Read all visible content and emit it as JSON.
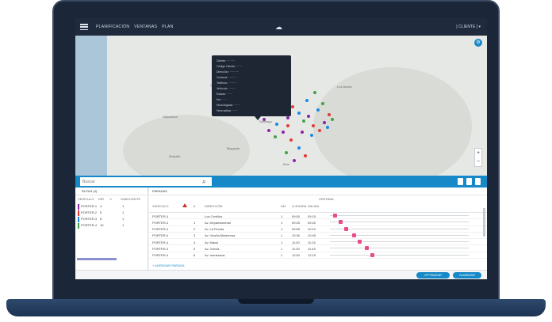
{
  "topbar": {
    "breadcrumbs": [
      "PLANIFICACIÓN",
      "VENTANAS",
      "PLAN"
    ],
    "user": "[ CLIENTE ] ▾"
  },
  "map": {
    "city_labels": [
      "Santiago",
      "Melipilla",
      "San Antonio",
      "Talagante",
      "Buin",
      "Valparaíso",
      "Quillota",
      "Los Andes"
    ],
    "tooltip_lines": [
      "Cliente: ·········",
      "Código Cliente: ······",
      "Dirección: ··········",
      "Comuna: ·········",
      "Teléfono: ·········",
      "Vehículo: ·······",
      "Estado: ······",
      "Km: ····",
      "Hora llegada: ······",
      "Hora salida: ······",
      "Ventana: ········",
      "Observaciones: ·····"
    ]
  },
  "search": {
    "placeholder": "Buscar"
  },
  "left_panel": {
    "title": "RUTAS (4)",
    "columns": [
      "VEHÍCULO",
      "DIR",
      "",
      "SUBCLIENTE"
    ],
    "rows": [
      {
        "vehicle": "PORTER-1",
        "dir": "4",
        "extra": "",
        "sub": "1",
        "color": "#8e24aa"
      },
      {
        "vehicle": "PORTER-2",
        "dir": "5",
        "extra": "",
        "sub": "1",
        "color": "#e53935"
      },
      {
        "vehicle": "PORTER-3",
        "dir": "8",
        "extra": "",
        "sub": "1",
        "color": "#1e88e5"
      },
      {
        "vehicle": "PORTER-4",
        "dir": "10",
        "extra": "",
        "sub": "1",
        "color": "#43a047"
      }
    ]
  },
  "right_panel": {
    "title": "PARADAS",
    "columns": [
      "VEHÍCULO",
      "",
      "#",
      "DIRECCIÓN",
      "KM",
      "LLEGADA",
      "SALIDA",
      "VENTANA"
    ],
    "rows": [
      {
        "vehicle": "PORTER-4",
        "num": "",
        "address": "Los Cerrillos",
        "km": "1",
        "eta": "09:00",
        "etd": "09:15",
        "pin": 0.02
      },
      {
        "vehicle": "PORTER-4",
        "num": "1",
        "address": "Av. Departamental",
        "km": "1",
        "eta": "09:25",
        "etd": "09:40",
        "pin": 0.06
      },
      {
        "vehicle": "PORTER-4",
        "num": "2",
        "address": "Av. La Florida",
        "km": "1",
        "eta": "09:55",
        "etd": "10:10",
        "pin": 0.1
      },
      {
        "vehicle": "PORTER-4",
        "num": "3",
        "address": "Av. Vicuña Mackenna",
        "km": "1",
        "eta": "10:30",
        "etd": "10:45",
        "pin": 0.16
      },
      {
        "vehicle": "PORTER-4",
        "num": "4",
        "address": "Av. Macul",
        "km": "1",
        "eta": "11:00",
        "etd": "11:15",
        "pin": 0.2
      },
      {
        "vehicle": "PORTER-4",
        "num": "5",
        "address": "Av. Grecia",
        "km": "1",
        "eta": "11:30",
        "etd": "11:45",
        "pin": 0.25
      },
      {
        "vehicle": "PORTER-4",
        "num": "6",
        "address": "Av. Irarrázaval",
        "km": "1",
        "eta": "12:00",
        "etd": "12:15",
        "pin": 0.29
      }
    ],
    "add_link": "+ AGREGAR PARADA"
  },
  "buttons": {
    "primary": "OPTIMIZAR",
    "secondary": "GUARDAR"
  },
  "colors": {
    "accent": "#1789c8",
    "topbar": "#1f2b3d",
    "pin": "#e94b8a"
  }
}
